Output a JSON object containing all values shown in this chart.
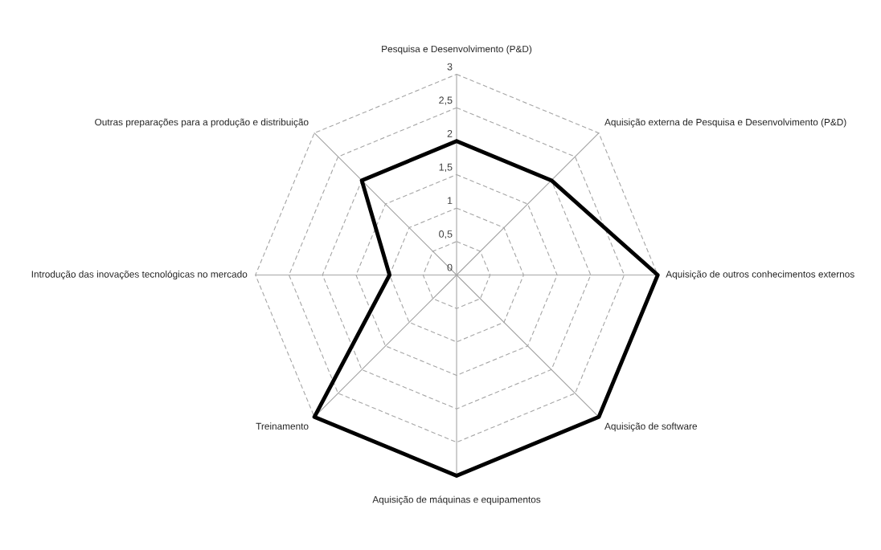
{
  "chart_data": {
    "type": "radar",
    "categories": [
      "Pesquisa e Desenvolvimento (P&D)",
      "Aquisição externa de Pesquisa e Desenvolvimento (P&D)",
      "Aquisição de outros conhecimentos externos",
      "Aquisição de software",
      "Aquisição de máquinas e equipamentos",
      "Treinamento",
      "Introdução das inovações tecnológicas no mercado",
      "Outras preparações para a produção e distribuição"
    ],
    "series": [
      {
        "color": "#000000",
        "values": [
          2,
          2,
          3,
          3,
          3,
          3,
          1,
          2
        ]
      }
    ],
    "ylim": [
      0,
      3
    ],
    "yticks": [
      0,
      {
        "value": 0.5,
        "label": "0,5"
      },
      1,
      {
        "value": 1.5,
        "label": "1,5"
      },
      2,
      {
        "value": 2.5,
        "label": "2,5"
      },
      3
    ],
    "grid": true,
    "marker": "none",
    "line_style": "solid"
  }
}
